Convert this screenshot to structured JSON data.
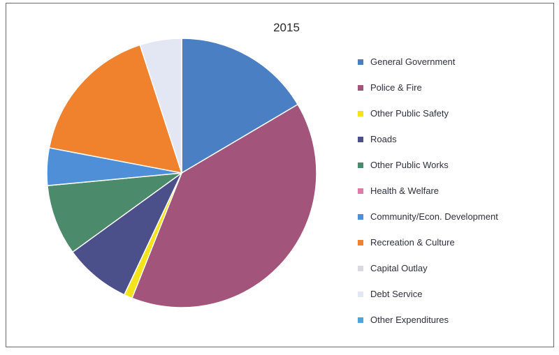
{
  "chart_data": {
    "type": "pie",
    "title": "2015",
    "categories": [
      "General Government",
      "Police & Fire",
      "Other Public Safety",
      "Roads",
      "Other Public Works",
      "Health & Welfare",
      "Community/Econ. Development",
      "Recreation & Culture",
      "Capital Outlay",
      "Debt Service",
      "Other Expenditures"
    ],
    "values": [
      16.5,
      39.5,
      1.0,
      8.0,
      8.5,
      0.0,
      4.5,
      17.0,
      0.0,
      5.0,
      0.0
    ],
    "units": "percent",
    "colors": [
      "#4a7fc4",
      "#a2547a",
      "#f4e21a",
      "#4b4f8a",
      "#4c8a6c",
      "#e07aa8",
      "#4f8fd8",
      "#f0822e",
      "#d9d9e4",
      "#e3e6f3",
      "#4aa5e0"
    ],
    "legend_position": "right"
  }
}
